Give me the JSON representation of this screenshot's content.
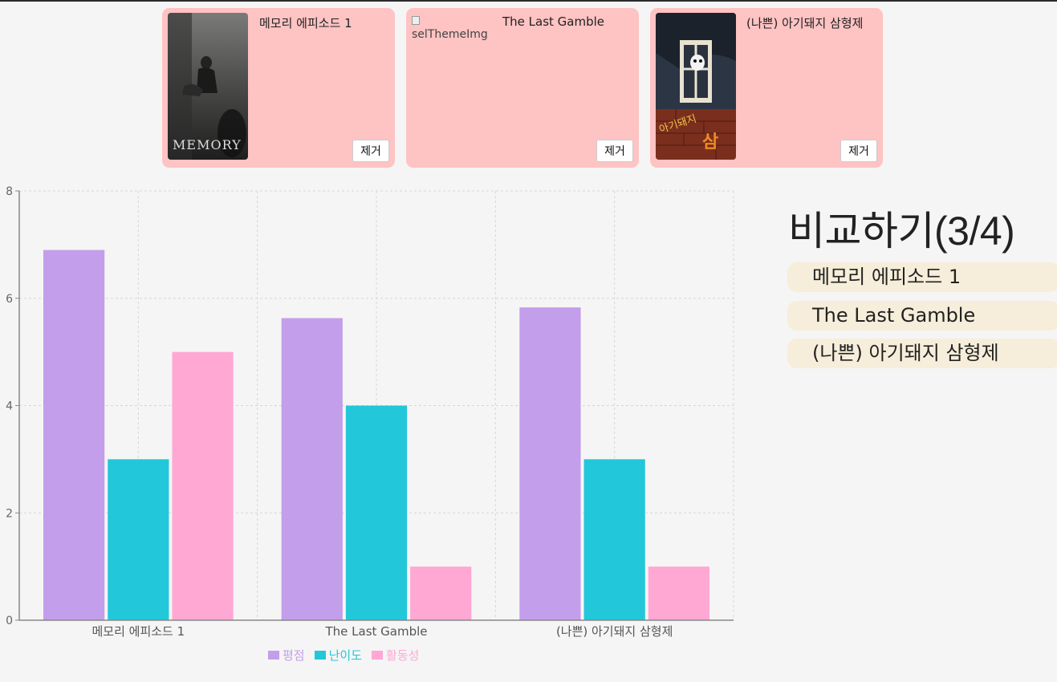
{
  "cards": [
    {
      "title": "메모리 에피소드 1",
      "remove_label": "제거",
      "image_alt": "MEMORY"
    },
    {
      "title": "The Last Gamble",
      "remove_label": "제거",
      "image_alt": "selThemeImg"
    },
    {
      "title": "(나쁜) 아기돼지 삼형제",
      "remove_label": "제거",
      "image_alt": "아기돼지 삼형제"
    }
  ],
  "compare": {
    "title": "비교하기(3/4)",
    "items": [
      "메모리 에피소드 1",
      "The Last Gamble",
      "(나쁜) 아기돼지 삼형제"
    ]
  },
  "colors": {
    "rating": "#c39eea",
    "difficulty": "#22c7da",
    "activity": "#ffa8d4",
    "card_bg": "#fec3c3",
    "pill_bg": "#f6eeda"
  },
  "chart_data": {
    "type": "bar",
    "categories": [
      "메모리 에피소드 1",
      "The Last Gamble",
      "(나쁜) 아기돼지 삼형제"
    ],
    "series": [
      {
        "name": "평점",
        "values": [
          6.9,
          5.63,
          5.83
        ],
        "color": "#c39eea"
      },
      {
        "name": "난이도",
        "values": [
          3,
          4,
          3
        ],
        "color": "#22c7da"
      },
      {
        "name": "활동성",
        "values": [
          5,
          1,
          1
        ],
        "color": "#ffa8d4"
      }
    ],
    "ylim": [
      0,
      8
    ],
    "yticks": [
      0,
      2,
      4,
      6,
      8
    ],
    "grid": true,
    "legend": "bottom"
  }
}
